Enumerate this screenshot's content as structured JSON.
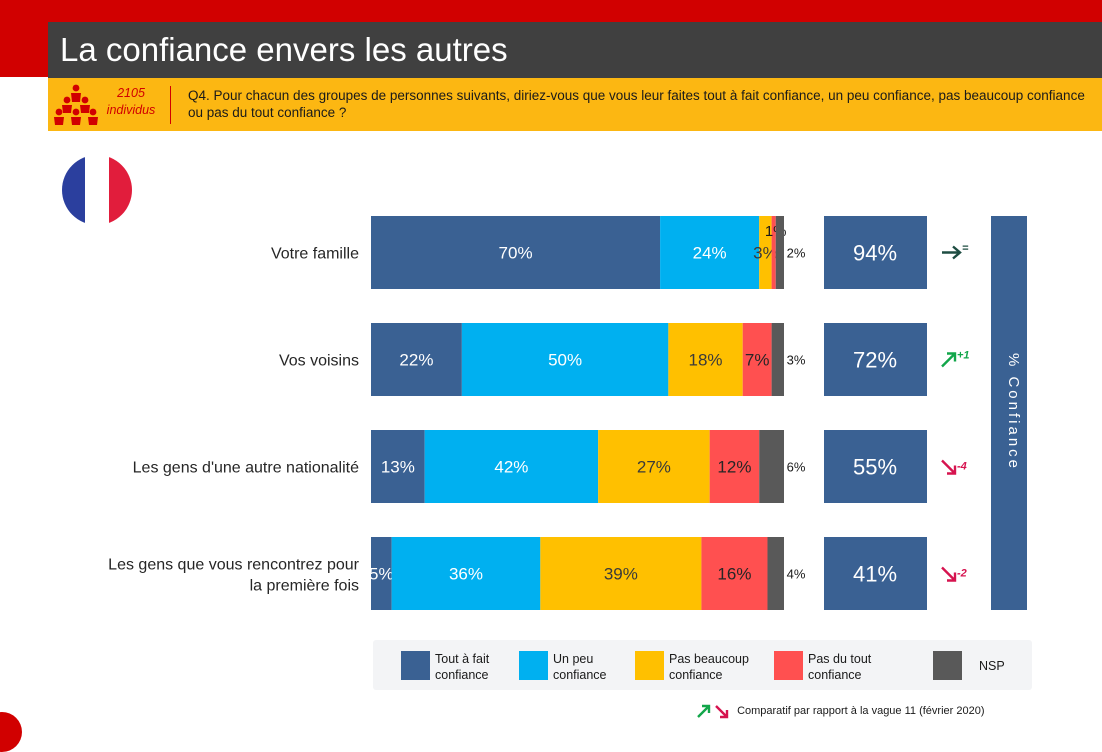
{
  "header": {
    "title": "La confiance envers les autres",
    "sample_count": "2105",
    "sample_unit": "individus",
    "question": "Q4. Pour chacun des groupes de personnes suivants, diriez-vous que vous leur faites tout à fait confiance, un peu confiance, pas beaucoup confiance ou pas du tout confiance ?"
  },
  "flag": {
    "colors": [
      "#2b3f9e",
      "#ffffff",
      "#e11d3c"
    ],
    "icon": "france-flag-icon"
  },
  "chart_data": {
    "type": "bar",
    "orientation": "horizontal",
    "stacked": true,
    "categories": [
      "Votre famille",
      "Vos voisins",
      "Les gens d'une autre nationalité",
      "Les gens que vous rencontrez pour la première fois"
    ],
    "series": [
      {
        "name": "Tout à fait confiance",
        "color": "#3a6193",
        "values": [
          70,
          22,
          13,
          5
        ],
        "labels": [
          "70%",
          "22%",
          "13%",
          "5%"
        ]
      },
      {
        "name": "Un peu confiance",
        "color": "#00b0f0",
        "values": [
          24,
          50,
          42,
          36
        ],
        "labels": [
          "24%",
          "50%",
          "42%",
          "36%"
        ]
      },
      {
        "name": "Pas beaucoup confiance",
        "color": "#ffc000",
        "values": [
          3,
          18,
          27,
          39
        ],
        "labels": [
          "3%",
          "18%",
          "27%",
          "39%"
        ]
      },
      {
        "name": "Pas du tout confiance",
        "color": "#ff5050",
        "values": [
          1,
          7,
          12,
          16
        ],
        "labels": [
          "1%",
          "7%",
          "12%",
          "16%"
        ]
      },
      {
        "name": "NSP",
        "color": "#595959",
        "values": [
          2,
          3,
          6,
          4
        ],
        "labels": [
          "2%",
          "3%",
          "6%",
          "4%"
        ]
      }
    ],
    "xlim": [
      0,
      100
    ],
    "legend_position": "bottom",
    "confidence_totals": [
      "94%",
      "72%",
      "55%",
      "41%"
    ],
    "confidence_axis_label": "% Confiance",
    "trend": [
      {
        "direction": "flat",
        "label": "=",
        "color": "#1e4d42"
      },
      {
        "direction": "up",
        "label": "+1",
        "color": "#12a64a"
      },
      {
        "direction": "down",
        "label": "-4",
        "color": "#d6134f"
      },
      {
        "direction": "down",
        "label": "-2",
        "color": "#d6134f"
      }
    ],
    "comparison_note": "Comparatif par rapport à la vague 11 (février 2020)"
  }
}
